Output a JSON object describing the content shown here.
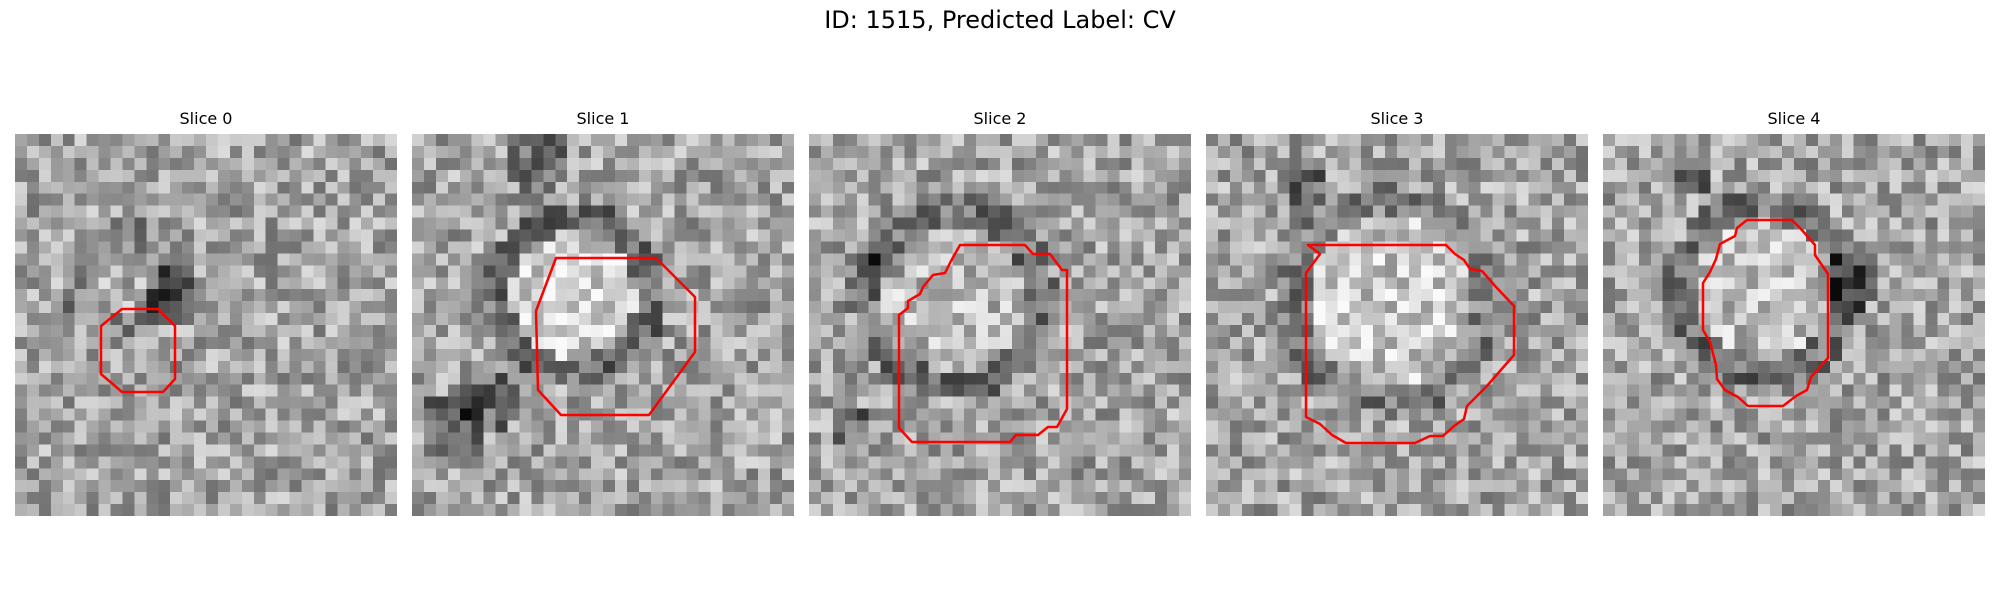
{
  "figure": {
    "title": "ID: 1515, Predicted Label: CV",
    "contour_color": "#ff0000"
  },
  "slices": [
    {
      "title": "Slice 0"
    },
    {
      "title": "Slice 1"
    },
    {
      "title": "Slice 2"
    },
    {
      "title": "Slice 3"
    },
    {
      "title": "Slice 4"
    }
  ]
}
